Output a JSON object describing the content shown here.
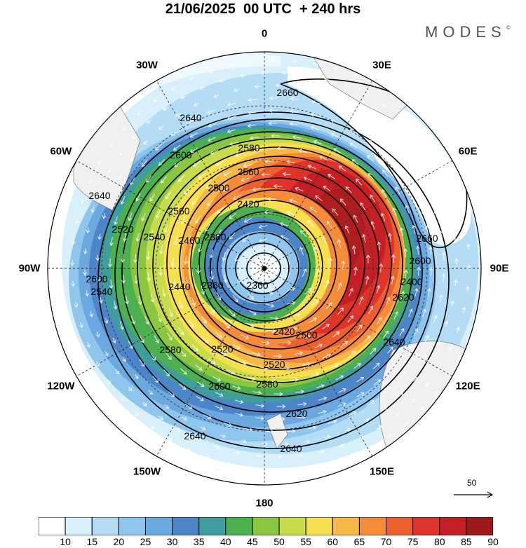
{
  "title": "21/06/2025  00 UTC  + 240 hrs",
  "brand": "MODES",
  "brand_mark": "©",
  "longitude_labels": [
    {
      "text": "0",
      "lon": 0
    },
    {
      "text": "30E",
      "lon": 30
    },
    {
      "text": "60E",
      "lon": 60
    },
    {
      "text": "90E",
      "lon": 90
    },
    {
      "text": "120E",
      "lon": 120
    },
    {
      "text": "150E",
      "lon": 150
    },
    {
      "text": "180",
      "lon": 180
    },
    {
      "text": "150W",
      "lon": -150
    },
    {
      "text": "120W",
      "lon": -120
    },
    {
      "text": "90W",
      "lon": -90
    },
    {
      "text": "60W",
      "lon": -60
    },
    {
      "text": "30W",
      "lon": -30
    }
  ],
  "contour_labels": [
    "2660",
    "2640",
    "2600",
    "2580",
    "2560",
    "2640",
    "2560",
    "2500",
    "2420",
    "2520",
    "2540",
    "2460",
    "2380",
    "2360",
    "2440",
    "2600",
    "2540",
    "2660",
    "2600",
    "2400",
    "2620",
    "2640",
    "2420",
    "2500",
    "2520",
    "2580",
    "2520",
    "2580",
    "2600",
    "2620",
    "2640",
    "2640",
    "2360"
  ],
  "reference_vector": {
    "label": "50"
  },
  "colorbar": {
    "ticks": [
      "10",
      "15",
      "20",
      "25",
      "30",
      "35",
      "40",
      "45",
      "50",
      "55",
      "60",
      "65",
      "70",
      "75",
      "80",
      "85",
      "90"
    ],
    "colors": [
      "#ffffff",
      "#d8f0fb",
      "#b4ddf5",
      "#8ec6ee",
      "#6aa8e0",
      "#4c86c8",
      "#3f9d9d",
      "#4cb04f",
      "#8ac640",
      "#c8dc4c",
      "#f7e050",
      "#f6b848",
      "#f48c3a",
      "#ec6030",
      "#dd3328",
      "#c41f24",
      "#9e1a1a"
    ]
  }
}
